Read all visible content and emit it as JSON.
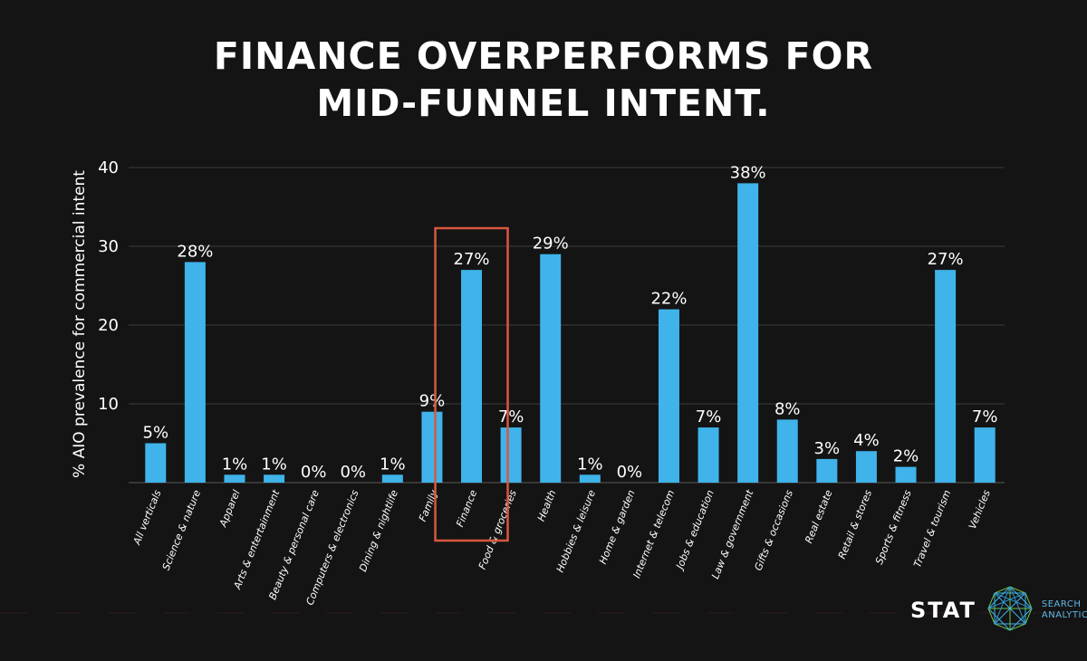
{
  "title": {
    "line1": "FINANCE OVERPERFORMS FOR",
    "line2": "MID-FUNNEL INTENT."
  },
  "logo": {
    "brand": "STAT",
    "sub_line1": "SEARCH",
    "sub_line2": "ANALYTICS",
    "icon": "network-sphere-icon"
  },
  "colors": {
    "background": "#141414",
    "bar": "#3fb3ea",
    "highlight": "#d9573f",
    "logo_accent": "#5fb9e6"
  },
  "chart_data": {
    "type": "bar",
    "title": "FINANCE OVERPERFORMS FOR MID-FUNNEL INTENT.",
    "xlabel": "",
    "ylabel": "% AIO prevalence for commercial intent",
    "ylim": [
      0,
      40
    ],
    "yticks": [
      10,
      20,
      30,
      40
    ],
    "grid": true,
    "categories": [
      "All verticals",
      "Science & nature",
      "Apparel",
      "Arts & entertainment",
      "Beauty & personal care",
      "Computers & electronics",
      "Dining & nightlife",
      "Family",
      "Finance",
      "Food & groceries",
      "Health",
      "Hobbies & leisure",
      "Home & garden",
      "Internet & telecom",
      "Jobs & education",
      "Law & government",
      "Gifts & occasions",
      "Real estate",
      "Retail & stores",
      "Sports & fitness",
      "Travel & tourism",
      "Vehicles"
    ],
    "values": [
      5,
      28,
      1,
      1,
      0,
      0,
      1,
      9,
      27,
      7,
      29,
      1,
      0,
      22,
      7,
      38,
      8,
      3,
      4,
      2,
      27,
      7
    ],
    "data_labels": [
      "5%",
      "28%",
      "1%",
      "1%",
      "0%",
      "0%",
      "1%",
      "9%",
      "27%",
      "7%",
      "29%",
      "1%",
      "0%",
      "22%",
      "7%",
      "38%",
      "8%",
      "3%",
      "4%",
      "2%",
      "27%",
      "7%"
    ],
    "highlighted_category": "Finance"
  }
}
